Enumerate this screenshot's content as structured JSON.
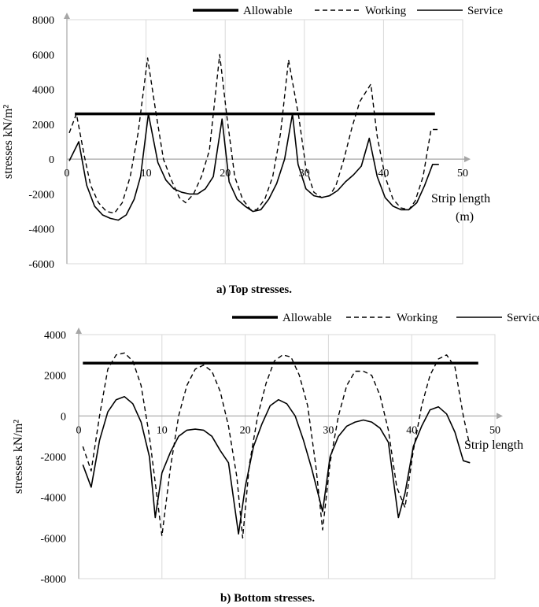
{
  "legend": [
    "Allowable",
    "Working",
    "Service"
  ],
  "chart_data": [
    {
      "type": "line",
      "caption": "a)   Top stresses.",
      "ylabel": "stresses kN/m²",
      "xlabel": "Strip length",
      "xlabel_unit": "(m)",
      "xlim": [
        0,
        50
      ],
      "ylim": [
        -6000,
        8000
      ],
      "xticks": [
        0,
        10,
        20,
        30,
        40,
        50
      ],
      "yticks": [
        -6000,
        -4000,
        -2000,
        0,
        2000,
        4000,
        6000,
        8000
      ],
      "legend_position": "top",
      "grid": "vertical",
      "series": [
        {
          "name": "Allowable",
          "style": "thick-solid",
          "x": [
            1.0,
            46.5
          ],
          "y": [
            2600,
            2600
          ]
        },
        {
          "name": "Working",
          "style": "dashed",
          "x": [
            0.3,
            1.2,
            2.2,
            3.0,
            4.0,
            5.0,
            6.0,
            7.0,
            8.0,
            9.0,
            10.2,
            11.2,
            12.2,
            13.2,
            14.2,
            15.0,
            16.0,
            17.0,
            18.0,
            19.3,
            20.2,
            21.2,
            22.2,
            23.2,
            24.0,
            25.0,
            26.0,
            27.0,
            28.0,
            29.3,
            30.2,
            31.2,
            32.2,
            33.2,
            34.0,
            35.0,
            36.0,
            37.0,
            38.4,
            39.2,
            40.2,
            41.2,
            42.2,
            43.2,
            44.0,
            45.0,
            46.0,
            47.0
          ],
          "y": [
            1500,
            2600,
            200,
            -1500,
            -2500,
            -3000,
            -3100,
            -2500,
            -1000,
            1500,
            5800,
            2800,
            0,
            -1200,
            -2200,
            -2500,
            -2000,
            -1000,
            500,
            6000,
            2500,
            -1000,
            -2300,
            -2900,
            -2900,
            -2300,
            -1000,
            1500,
            5700,
            2400,
            -500,
            -1900,
            -2200,
            -2100,
            -1500,
            0,
            1800,
            3300,
            4300,
            1300,
            -1000,
            -2300,
            -2800,
            -2900,
            -2400,
            -1000,
            1700,
            1700
          ]
        },
        {
          "name": "Service",
          "style": "solid",
          "x": [
            0.3,
            1.5,
            2.5,
            3.5,
            4.5,
            5.5,
            6.5,
            7.5,
            8.5,
            9.3,
            10.3,
            11.5,
            12.5,
            13.5,
            14.5,
            15.5,
            16.5,
            17.5,
            18.5,
            19.6,
            20.5,
            21.5,
            22.5,
            23.5,
            24.5,
            25.5,
            26.5,
            27.5,
            28.5,
            29.2,
            30.2,
            31.2,
            32.2,
            33.2,
            34.2,
            35.2,
            36.2,
            37.2,
            38.2,
            39.2,
            40.2,
            41.2,
            42.2,
            43.2,
            44.2,
            45.2,
            46.2,
            47.0
          ],
          "y": [
            -100,
            1000,
            -1500,
            -2700,
            -3200,
            -3400,
            -3500,
            -3200,
            -2300,
            -1000,
            2600,
            -200,
            -1200,
            -1700,
            -1900,
            -2000,
            -2000,
            -1700,
            -1000,
            2300,
            -1300,
            -2300,
            -2700,
            -3000,
            -2900,
            -2300,
            -1400,
            0,
            2600,
            -300,
            -1700,
            -2100,
            -2200,
            -2100,
            -1800,
            -1300,
            -900,
            -400,
            1200,
            -1000,
            -2200,
            -2700,
            -2900,
            -2900,
            -2500,
            -1500,
            -300,
            -300
          ]
        }
      ]
    },
    {
      "type": "line",
      "caption": "b)   Bottom stresses.",
      "ylabel": "stresses kN/m²",
      "xlabel": "Strip length",
      "xlim": [
        0,
        50
      ],
      "ylim": [
        -8000,
        4000
      ],
      "xticks": [
        0,
        10,
        20,
        30,
        40,
        50
      ],
      "yticks": [
        -8000,
        -6000,
        -4000,
        -2000,
        0,
        2000,
        4000
      ],
      "legend_position": "top",
      "grid": "vertical",
      "series": [
        {
          "name": "Allowable",
          "style": "thick-solid",
          "x": [
            0.5,
            48.0
          ],
          "y": [
            2600,
            2600
          ]
        },
        {
          "name": "Working",
          "style": "dashed",
          "x": [
            0.5,
            1.5,
            2.5,
            3.5,
            4.5,
            5.5,
            6.5,
            7.5,
            8.5,
            10.0,
            11.0,
            12.0,
            13.0,
            14.0,
            15.0,
            16.0,
            17.0,
            18.0,
            19.0,
            19.7,
            20.5,
            21.5,
            22.5,
            23.5,
            24.5,
            25.5,
            26.5,
            27.5,
            28.5,
            29.3,
            30.2,
            31.2,
            32.2,
            33.2,
            34.2,
            35.2,
            36.2,
            37.2,
            38.2,
            39.2,
            40.2,
            41.2,
            42.2,
            43.2,
            44.2,
            45.2,
            46.2,
            47.0
          ],
          "y": [
            -1500,
            -2700,
            0,
            2300,
            3000,
            3100,
            2700,
            1500,
            -1000,
            -5900,
            -2600,
            0,
            1500,
            2300,
            2500,
            2200,
            1200,
            -500,
            -3000,
            -6000,
            -2400,
            0,
            1600,
            2700,
            3000,
            2900,
            2000,
            500,
            -2500,
            -5600,
            -2300,
            0,
            1500,
            2200,
            2200,
            2000,
            1000,
            -700,
            -3500,
            -4500,
            -1700,
            500,
            2000,
            2800,
            3000,
            2400,
            0,
            -1500
          ]
        },
        {
          "name": "Service",
          "style": "solid",
          "x": [
            0.5,
            1.5,
            2.5,
            3.5,
            4.5,
            5.5,
            6.5,
            7.5,
            8.5,
            9.2,
            10.0,
            11.0,
            12.0,
            13.0,
            14.0,
            15.0,
            16.0,
            17.0,
            18.0,
            19.2,
            20.0,
            21.0,
            22.0,
            23.0,
            24.0,
            25.0,
            26.0,
            27.0,
            28.0,
            29.3,
            30.2,
            31.2,
            32.2,
            33.2,
            34.2,
            35.2,
            36.2,
            37.2,
            38.4,
            39.2,
            40.2,
            41.2,
            42.2,
            43.2,
            44.2,
            45.2,
            46.2,
            47.0
          ],
          "y": [
            -2400,
            -3500,
            -1200,
            200,
            800,
            950,
            600,
            -300,
            -2000,
            -5000,
            -2800,
            -1800,
            -1000,
            -700,
            -650,
            -700,
            -1000,
            -1700,
            -2300,
            -5800,
            -3500,
            -1500,
            -400,
            500,
            800,
            600,
            0,
            -1200,
            -2600,
            -4700,
            -2000,
            -1000,
            -500,
            -300,
            -200,
            -300,
            -600,
            -1300,
            -5000,
            -3800,
            -1500,
            -500,
            300,
            450,
            100,
            -800,
            -2200,
            -2300
          ]
        }
      ]
    }
  ]
}
